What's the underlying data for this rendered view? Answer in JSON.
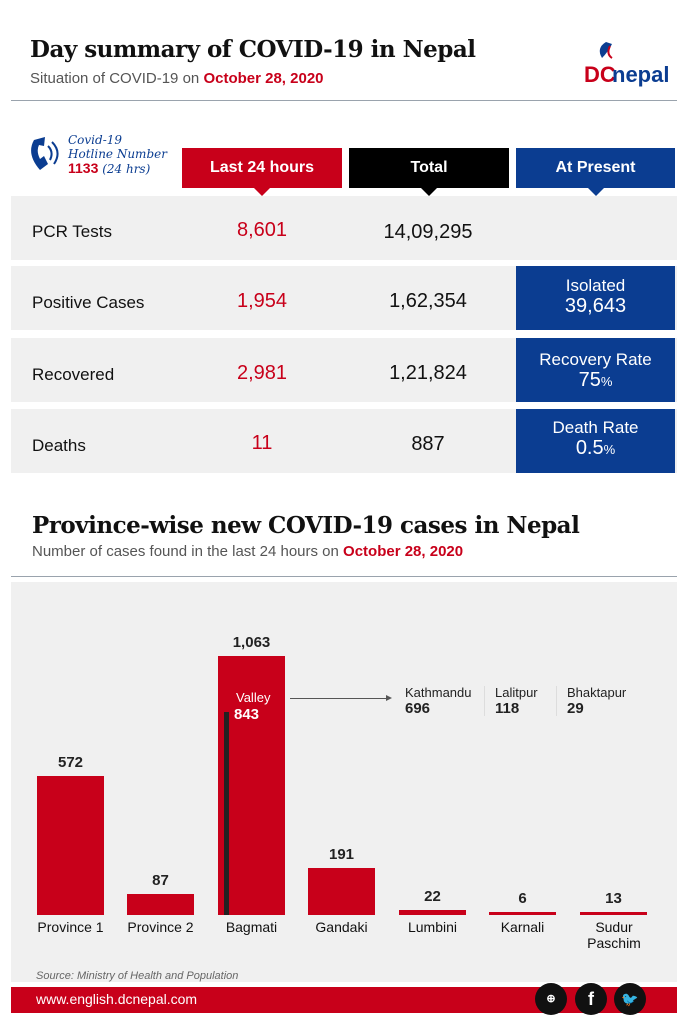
{
  "header": {
    "title": "Day summary of COVID-19 in Nepal",
    "subtitle_prefix": "Situation of COVID-19 on",
    "date": "October 28, 2020",
    "logo": "DCnepal.com"
  },
  "hotline": {
    "line1": "Covid-19",
    "line2": "Hotline Number",
    "number": "1133",
    "hours": "(24 hrs)"
  },
  "columns": {
    "last24": "Last 24 hours",
    "total": "Total",
    "present": "At Present"
  },
  "rows": [
    {
      "label": "PCR Tests",
      "last24": "8,601",
      "total": "14,09,295"
    },
    {
      "label": "Positive Cases",
      "last24": "1,954",
      "total": "1,62,354",
      "present_label": "Isolated",
      "present_value": "39,643"
    },
    {
      "label": "Recovered",
      "last24": "2,981",
      "total": "1,21,824",
      "present_label": "Recovery Rate",
      "present_value": "75",
      "present_unit": "%"
    },
    {
      "label": "Deaths",
      "last24": "11",
      "total": "887",
      "present_label": "Death Rate",
      "present_value": "0.5",
      "present_unit": "%"
    }
  ],
  "colors": {
    "red": "#c8001a",
    "blue": "#0b3d91",
    "black": "#000000"
  },
  "chart_data": {
    "type": "bar",
    "title": "Province-wise new COVID-19 cases in Nepal",
    "subtitle_prefix": "Number of cases found in the last 24 hours on",
    "date": "October 28, 2020",
    "categories": [
      "Province 1",
      "Province 2",
      "Bagmati",
      "Gandaki",
      "Lumbini",
      "Karnali",
      "Sudur Paschim"
    ],
    "values": [
      572,
      87,
      1063,
      191,
      22,
      6,
      13
    ],
    "labels": [
      "572",
      "87",
      "1,063",
      "191",
      "22",
      "6",
      "13"
    ],
    "valley": {
      "label": "Valley",
      "value": 843,
      "value_label": "843"
    },
    "districts": [
      {
        "name": "Kathmandu",
        "value": "696"
      },
      {
        "name": "Lalitpur",
        "value": "118"
      },
      {
        "name": "Bhaktapur",
        "value": "29"
      }
    ],
    "source": "Source: Ministry of Health and Population"
  },
  "footer": {
    "url": "www.english.dcnepal.com",
    "icons": [
      "globe-icon",
      "facebook-icon",
      "twitter-icon"
    ]
  }
}
